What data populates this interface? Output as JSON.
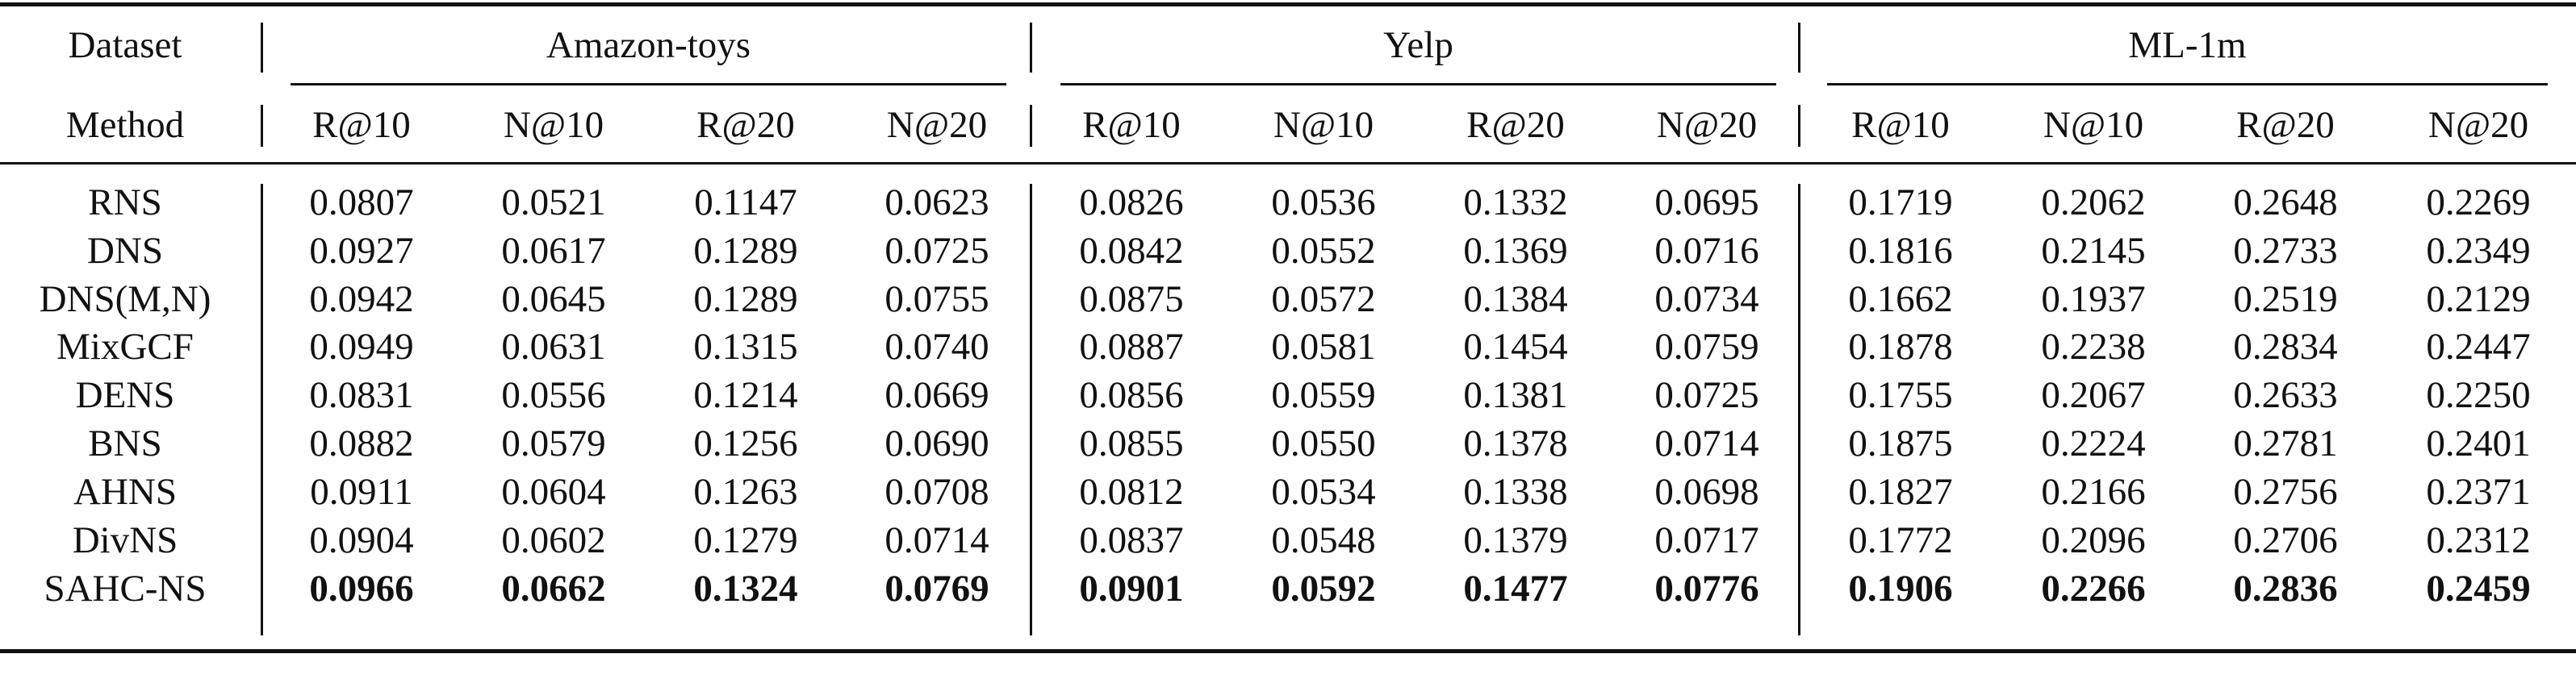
{
  "header": {
    "dataset_label": "Dataset",
    "method_label": "Method",
    "datasets": [
      "Amazon-toys",
      "Yelp",
      "ML-1m"
    ],
    "metrics": [
      "R@10",
      "N@10",
      "R@20",
      "N@20"
    ]
  },
  "rows": [
    {
      "method": "RNS",
      "values": [
        "0.0807",
        "0.0521",
        "0.1147",
        "0.0623",
        "0.0826",
        "0.0536",
        "0.1332",
        "0.0695",
        "0.1719",
        "0.2062",
        "0.2648",
        "0.2269"
      ]
    },
    {
      "method": "DNS",
      "values": [
        "0.0927",
        "0.0617",
        "0.1289",
        "0.0725",
        "0.0842",
        "0.0552",
        "0.1369",
        "0.0716",
        "0.1816",
        "0.2145",
        "0.2733",
        "0.2349"
      ]
    },
    {
      "method": "DNS(M,N)",
      "values": [
        "0.0942",
        "0.0645",
        "0.1289",
        "0.0755",
        "0.0875",
        "0.0572",
        "0.1384",
        "0.0734",
        "0.1662",
        "0.1937",
        "0.2519",
        "0.2129"
      ]
    },
    {
      "method": "MixGCF",
      "values": [
        "0.0949",
        "0.0631",
        "0.1315",
        "0.0740",
        "0.0887",
        "0.0581",
        "0.1454",
        "0.0759",
        "0.1878",
        "0.2238",
        "0.2834",
        "0.2447"
      ]
    },
    {
      "method": "DENS",
      "values": [
        "0.0831",
        "0.0556",
        "0.1214",
        "0.0669",
        "0.0856",
        "0.0559",
        "0.1381",
        "0.0725",
        "0.1755",
        "0.2067",
        "0.2633",
        "0.2250"
      ]
    },
    {
      "method": "BNS",
      "values": [
        "0.0882",
        "0.0579",
        "0.1256",
        "0.0690",
        "0.0855",
        "0.0550",
        "0.1378",
        "0.0714",
        "0.1875",
        "0.2224",
        "0.2781",
        "0.2401"
      ]
    },
    {
      "method": "AHNS",
      "values": [
        "0.0911",
        "0.0604",
        "0.1263",
        "0.0708",
        "0.0812",
        "0.0534",
        "0.1338",
        "0.0698",
        "0.1827",
        "0.2166",
        "0.2756",
        "0.2371"
      ]
    },
    {
      "method": "DivNS",
      "values": [
        "0.0904",
        "0.0602",
        "0.1279",
        "0.0714",
        "0.0837",
        "0.0548",
        "0.1379",
        "0.0717",
        "0.1772",
        "0.2096",
        "0.2706",
        "0.2312"
      ]
    },
    {
      "method": "SAHC-NS",
      "values": [
        "0.0966",
        "0.0662",
        "0.1324",
        "0.0769",
        "0.0901",
        "0.0592",
        "0.1477",
        "0.0776",
        "0.1906",
        "0.2266",
        "0.2836",
        "0.2459"
      ],
      "bold": true
    }
  ]
}
